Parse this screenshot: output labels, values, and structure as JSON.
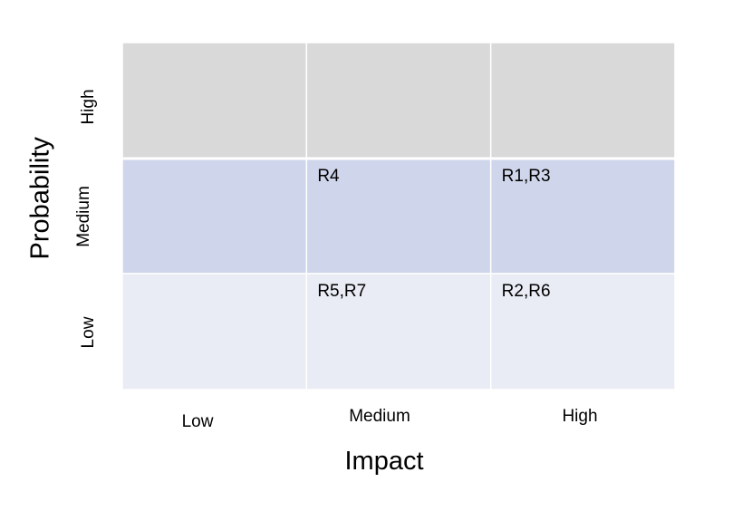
{
  "chart_data": {
    "type": "table",
    "title": "",
    "xlabel": "Impact",
    "ylabel": "Probability",
    "columns": [
      "Low",
      "Medium",
      "High"
    ],
    "rows": [
      "High",
      "Medium",
      "Low"
    ],
    "cells": [
      [
        "",
        "",
        ""
      ],
      [
        "",
        "R4",
        "R1,R3"
      ],
      [
        "",
        "R5,R7",
        "R2,R6"
      ]
    ],
    "row_colors": [
      "#d9d9d9",
      "#cfd5ea",
      "#e9ebf5"
    ],
    "grid": true
  }
}
